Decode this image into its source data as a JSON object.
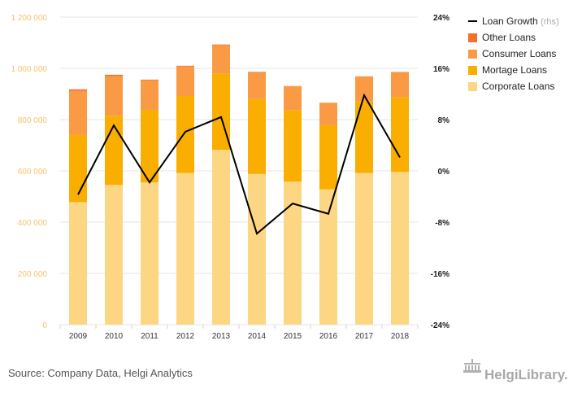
{
  "chart_data": {
    "type": "bar",
    "stacked": true,
    "categories": [
      "2009",
      "2010",
      "2011",
      "2012",
      "2013",
      "2014",
      "2015",
      "2016",
      "2017",
      "2018"
    ],
    "series": [
      {
        "name": "Corporate Loans",
        "color": "#fdd684",
        "values": [
          478000,
          545000,
          555000,
          592000,
          682000,
          588000,
          558000,
          528000,
          592000,
          596000
        ]
      },
      {
        "name": "Mortage Loans",
        "color": "#f9ae00",
        "values": [
          262000,
          270000,
          283000,
          300000,
          298000,
          292000,
          278000,
          250000,
          280000,
          292000
        ]
      },
      {
        "name": "Consumer Loans",
        "color": "#fb9a44",
        "values": [
          172000,
          155000,
          115000,
          115000,
          110000,
          103000,
          95000,
          88000,
          97000,
          98000
        ]
      },
      {
        "name": "Other Loans",
        "color": "#f2702b",
        "values": [
          6000,
          5000,
          3000,
          3000,
          3000,
          3000,
          0,
          0,
          0,
          0
        ]
      }
    ],
    "line_series": {
      "name": "Loan Growth",
      "suffix": "(rhs)",
      "color": "#000000",
      "values": [
        -3.7,
        7.1,
        -1.8,
        6.1,
        8.4,
        -9.8,
        -5.1,
        -6.7,
        11.8,
        2.1
      ]
    },
    "ylim": [
      0,
      1200000
    ],
    "y2lim": [
      -24,
      24
    ],
    "yticks": [
      "0",
      "200 000",
      "400 000",
      "600 000",
      "800 000",
      "1 000 000",
      "1 200 000"
    ],
    "y2ticks": [
      "-24%",
      "-16%",
      "-8%",
      "0%",
      "8%",
      "16%",
      "24%"
    ],
    "grid": true,
    "legend_position": "top-right",
    "title": "",
    "xlabel": "",
    "ylabel": ""
  },
  "footer": {
    "source": "Source: Company Data, Helgi Analytics",
    "brand": "HelgiLibrary."
  }
}
